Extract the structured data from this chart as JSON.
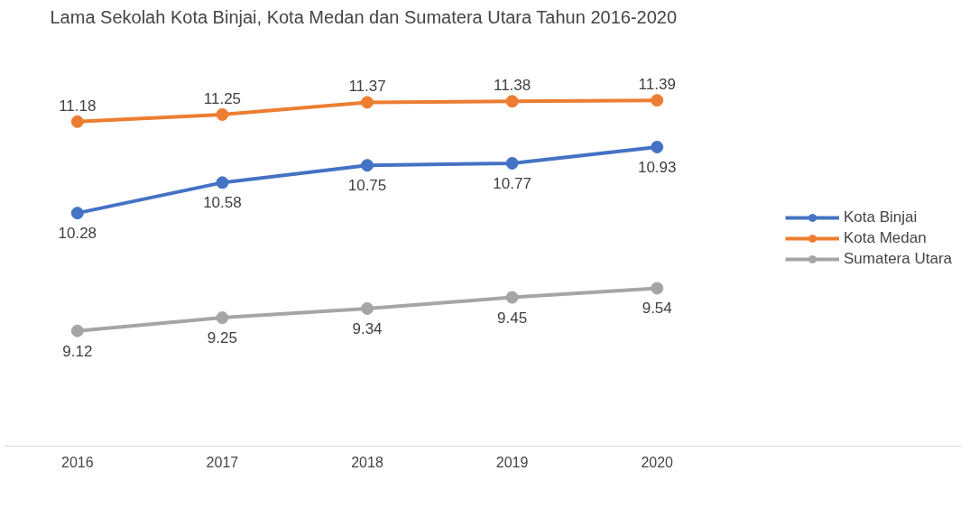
{
  "chart_data": {
    "type": "line",
    "title": "Lama Sekolah Kota Binjai, Kota Medan dan Sumatera Utara Tahun 2016-2020",
    "categories": [
      "2016",
      "2017",
      "2018",
      "2019",
      "2020"
    ],
    "series": [
      {
        "name": "Kota Binjai",
        "color": "#4472c4",
        "values": [
          10.28,
          10.58,
          10.75,
          10.77,
          10.93
        ]
      },
      {
        "name": "Kota Medan",
        "color": "#ed7d31",
        "values": [
          11.18,
          11.25,
          11.37,
          11.38,
          11.39
        ]
      },
      {
        "name": "Sumatera Utara",
        "color": "#a5a5a5",
        "values": [
          9.12,
          9.25,
          9.34,
          9.45,
          9.54
        ]
      }
    ],
    "data_labels": true,
    "legend": "right",
    "marker": "circle",
    "grid": false
  }
}
